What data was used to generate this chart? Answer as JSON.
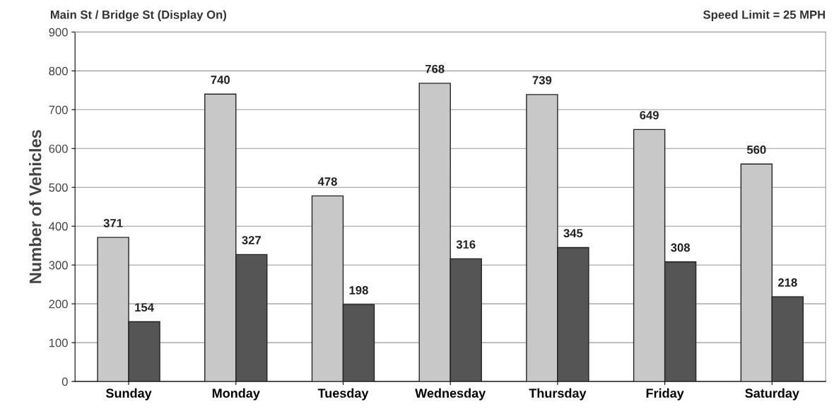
{
  "chart_data": {
    "type": "bar",
    "title": "Main St / Bridge St (Display On)",
    "ylabel": "Number of Vehicles",
    "annotations": [
      "Speed Limit = 25 MPH"
    ],
    "categories": [
      "Sunday",
      "Monday",
      "Tuesday",
      "Wednesday",
      "Thursday",
      "Friday",
      "Saturday"
    ],
    "series": [
      {
        "color": "#c8c8c8",
        "values": [
          371,
          740,
          478,
          768,
          739,
          649,
          560
        ]
      },
      {
        "color": "#555555",
        "values": [
          154,
          327,
          198,
          316,
          345,
          308,
          218
        ]
      }
    ],
    "ylim": [
      0,
      900
    ],
    "yticks": [
      0,
      100,
      200,
      300,
      400,
      500,
      600,
      700,
      800,
      900
    ],
    "grid": "y",
    "legend": false,
    "data_labels": true
  }
}
